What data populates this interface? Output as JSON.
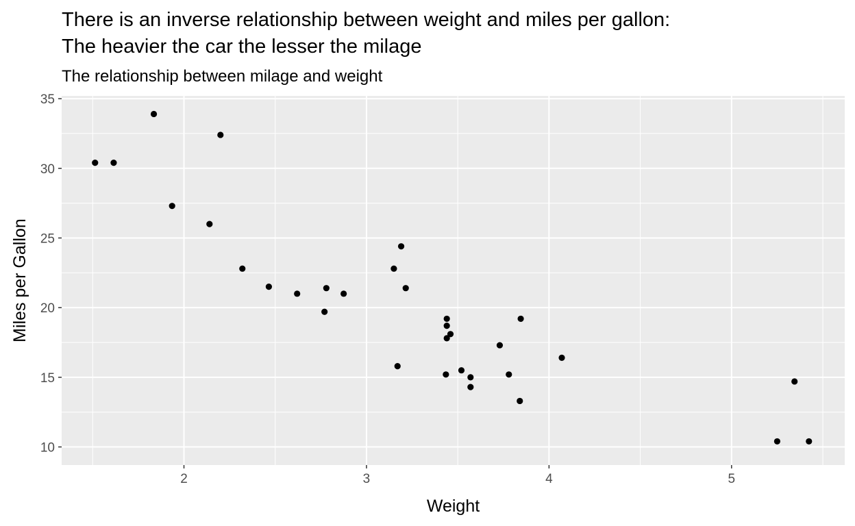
{
  "chart_data": {
    "type": "scatter",
    "title": "There is an inverse relationship between weight and miles per gallon:\nThe heavier the car the lesser the milage",
    "subtitle": "The relationship between milage and weight",
    "xlabel": "Weight",
    "ylabel": "Miles per Gallon",
    "xlim": [
      1.33,
      5.62
    ],
    "ylim": [
      8.7,
      35.2
    ],
    "x_ticks": [
      2,
      3,
      4,
      5
    ],
    "y_ticks": [
      10,
      15,
      20,
      25,
      30,
      35
    ],
    "grid": true,
    "colors": {
      "panel": "#ebebeb",
      "grid": "#ffffff",
      "point": "#000000"
    },
    "points": [
      {
        "x": 2.62,
        "y": 21.0
      },
      {
        "x": 2.875,
        "y": 21.0
      },
      {
        "x": 2.32,
        "y": 22.8
      },
      {
        "x": 3.215,
        "y": 21.4
      },
      {
        "x": 3.44,
        "y": 18.7
      },
      {
        "x": 3.46,
        "y": 18.1
      },
      {
        "x": 3.57,
        "y": 14.3
      },
      {
        "x": 3.19,
        "y": 24.4
      },
      {
        "x": 3.15,
        "y": 22.8
      },
      {
        "x": 3.44,
        "y": 19.2
      },
      {
        "x": 3.44,
        "y": 17.8
      },
      {
        "x": 4.07,
        "y": 16.4
      },
      {
        "x": 3.73,
        "y": 17.3
      },
      {
        "x": 3.78,
        "y": 15.2
      },
      {
        "x": 5.25,
        "y": 10.4
      },
      {
        "x": 5.424,
        "y": 10.4
      },
      {
        "x": 5.345,
        "y": 14.7
      },
      {
        "x": 2.2,
        "y": 32.4
      },
      {
        "x": 1.615,
        "y": 30.4
      },
      {
        "x": 1.835,
        "y": 33.9
      },
      {
        "x": 2.465,
        "y": 21.5
      },
      {
        "x": 3.52,
        "y": 15.5
      },
      {
        "x": 3.435,
        "y": 15.2
      },
      {
        "x": 3.84,
        "y": 13.3
      },
      {
        "x": 3.845,
        "y": 19.2
      },
      {
        "x": 1.935,
        "y": 27.3
      },
      {
        "x": 2.14,
        "y": 26.0
      },
      {
        "x": 1.513,
        "y": 30.4
      },
      {
        "x": 3.17,
        "y": 15.8
      },
      {
        "x": 2.77,
        "y": 19.7
      },
      {
        "x": 3.57,
        "y": 15.0
      },
      {
        "x": 2.78,
        "y": 21.4
      }
    ]
  }
}
